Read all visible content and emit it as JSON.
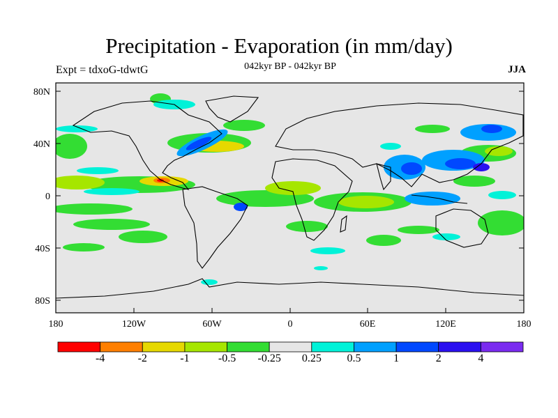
{
  "title": "Precipitation - Evaporation (in mm/day)",
  "subtitle_left": "Expt = tdxoG-tdwtG",
  "subtitle_center": "042kyr BP - 042kyr BP",
  "subtitle_right": "JJA",
  "lat_ticks": [
    "80N",
    "40N",
    "0",
    "40S",
    "80S"
  ],
  "lon_ticks": [
    "180",
    "120W",
    "60W",
    "0",
    "60E",
    "120E",
    "180"
  ],
  "colorbar": {
    "colors": [
      "#ff0000",
      "#ff7f00",
      "#e6d800",
      "#a6e600",
      "#33dd33",
      "#e6e6e6",
      "#00f2d8",
      "#00a0ff",
      "#0048ff",
      "#2a10f0",
      "#7a2bf0"
    ],
    "labels": [
      "-4",
      "-2",
      "-1",
      "-0.5",
      "-0.25",
      "0.25",
      "0.5",
      "1",
      "2",
      "4"
    ]
  },
  "colors": {
    "background_field": "#e6e6e6",
    "coast": "#000000"
  }
}
